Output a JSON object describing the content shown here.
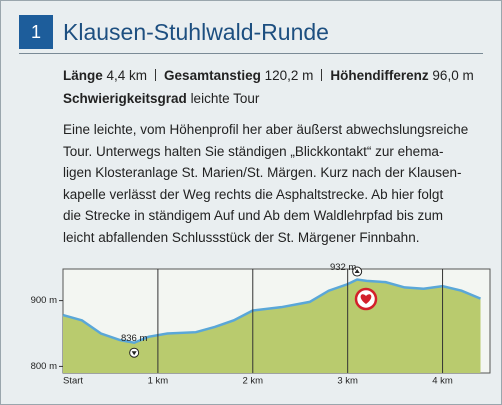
{
  "header": {
    "number": "1",
    "title": "Klausen-Stuhlwald-Runde"
  },
  "stats": [
    {
      "label": "Länge",
      "value": "4,4 km"
    },
    {
      "label": "Gesamtanstieg",
      "value": "120,2 m"
    },
    {
      "label": "Höhendifferenz",
      "value": "96,0 m"
    }
  ],
  "difficulty": {
    "label": "Schwierigkeitsgrad",
    "value": "leichte Tour"
  },
  "description": [
    "Eine leichte, vom Höhenprofil her aber äußerst abwechslungsreiche",
    "Tour. Unterwegs halten Sie ständigen „Blickkontakt“ zur ehema-",
    "ligen Klosteranlage St. Marien/St. Märgen. Kurz nach der Klausen-",
    "kapelle verlässt der Weg rechts die Asphaltstrecke. Ab hier folgt",
    "die Strecke in ständigem Auf und Ab dem Waldlehrpfad bis zum",
    "leicht abfallenden Schlussstück der St. Märgener Finnbahn."
  ],
  "chart_data": {
    "type": "area",
    "x": [
      0,
      0.2,
      0.4,
      0.6,
      0.75,
      0.9,
      1.1,
      1.4,
      1.6,
      1.8,
      2.0,
      2.3,
      2.6,
      2.8,
      3.0,
      3.1,
      3.2,
      3.4,
      3.6,
      3.8,
      4.0,
      4.2,
      4.4
    ],
    "series": [
      {
        "color": "#5aa7d8",
        "fill": "#b9cb6e",
        "values": [
          878,
          870,
          850,
          840,
          836,
          845,
          850,
          852,
          860,
          870,
          885,
          890,
          898,
          915,
          925,
          932,
          930,
          928,
          920,
          918,
          922,
          915,
          903
        ]
      }
    ],
    "xlim": [
      0,
      4.5
    ],
    "ylim": [
      790,
      948
    ],
    "xticks": [
      {
        "value": 0,
        "label": "Start"
      },
      {
        "value": 1,
        "label": "1 km"
      },
      {
        "value": 2,
        "label": "2 km"
      },
      {
        "value": 3,
        "label": "3 km"
      },
      {
        "value": 4,
        "label": "4 km"
      }
    ],
    "yticks": [
      {
        "value": 800,
        "label": "800 m"
      },
      {
        "value": 900,
        "label": "900 m"
      }
    ],
    "annotations": [
      {
        "text": "836 m",
        "x": 0.75,
        "y": 836
      },
      {
        "text": "932 m",
        "x": 3.1,
        "y": 932
      }
    ]
  }
}
